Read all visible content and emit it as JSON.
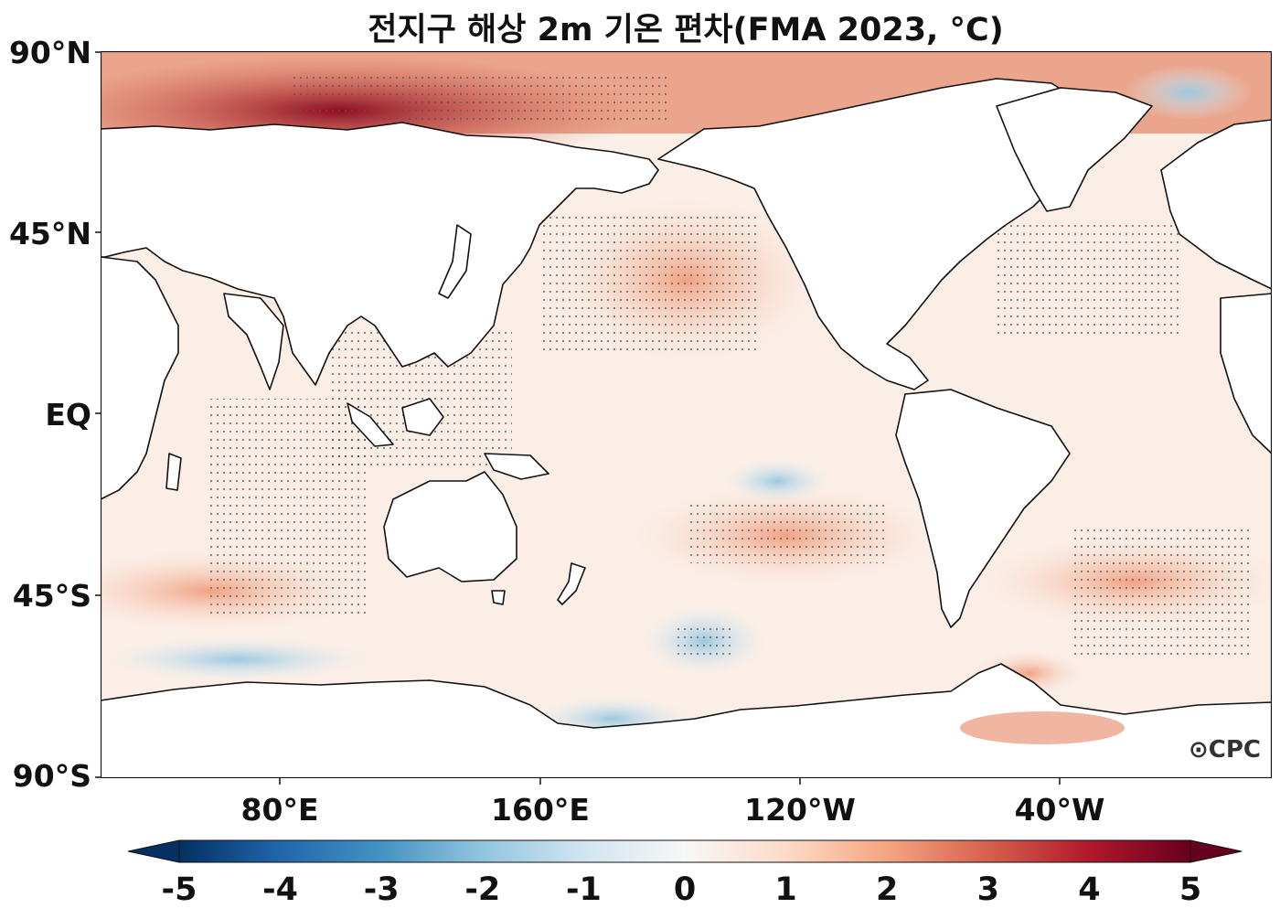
{
  "title": "전지구 해상 2m 기온 편차(FMA 2023, °C)",
  "map": {
    "projection": "plate-carree, centered at 150°W",
    "variable": "2m air temperature anomaly over ocean",
    "period": "FMA 2023",
    "units": "°C",
    "y_ticks": [
      "90°N",
      "45°N",
      "EQ",
      "45°S",
      "90°S"
    ],
    "x_ticks": [
      "80°E",
      "160°E",
      "120°W",
      "40°W"
    ],
    "stippling": "significant anomaly",
    "logo": "CPC"
  },
  "colorbar": {
    "colormap": "RdBu_r",
    "min": -5,
    "max": 5,
    "extend": "both",
    "ticks": [
      "-5",
      "-4",
      "-3",
      "-2",
      "-1",
      "0",
      "1",
      "2",
      "3",
      "4",
      "5"
    ],
    "colors": [
      "#053061",
      "#2166ac",
      "#4393c3",
      "#92c5de",
      "#d1e5f0",
      "#f7f7f7",
      "#fddbc7",
      "#f4a582",
      "#d6604d",
      "#b2182b",
      "#67001f"
    ]
  }
}
